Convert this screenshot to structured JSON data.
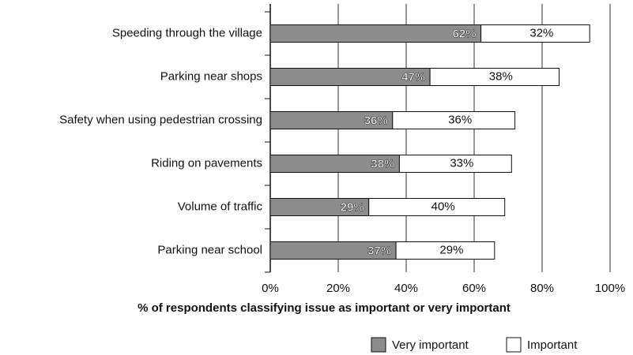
{
  "chart_data": {
    "type": "stacked_barh",
    "categories": [
      "Speeding through the village",
      "Parking near shops",
      "Safety when using pedestrian crossing",
      "Riding on pavements",
      "Volume of traffic",
      "Parking near school"
    ],
    "series": [
      {
        "name": "Very important",
        "color": "#8c8c8c",
        "values": [
          62,
          47,
          36,
          38,
          29,
          37
        ],
        "value_labels": [
          "62%",
          "47%",
          "36%",
          "38%",
          "29%",
          "37%"
        ]
      },
      {
        "name": "Important",
        "color": "#ffffff",
        "values": [
          32,
          38,
          36,
          33,
          40,
          29
        ],
        "value_labels": [
          "32%",
          "38%",
          "36%",
          "33%",
          "40%",
          "29%"
        ]
      }
    ],
    "xlim": [
      0,
      100
    ],
    "xticks": [
      {
        "value": 0,
        "label": "0%"
      },
      {
        "value": 20,
        "label": "20%"
      },
      {
        "value": 40,
        "label": "40%"
      },
      {
        "value": 60,
        "label": "60%"
      },
      {
        "value": 80,
        "label": "80%"
      },
      {
        "value": 100,
        "label": "100%"
      }
    ],
    "xlabel": "% of respondents classifying issue as important or very important",
    "grid": true,
    "legend": "bottom-right"
  }
}
